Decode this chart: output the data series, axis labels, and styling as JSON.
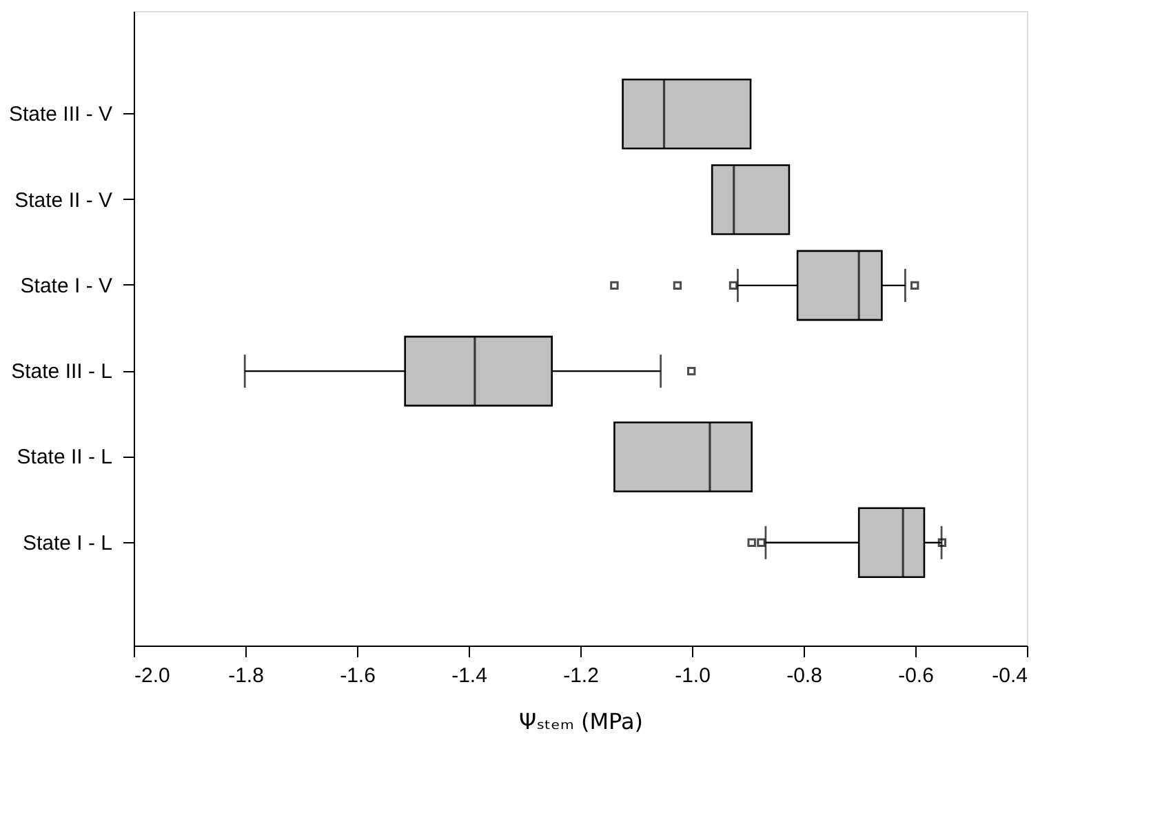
{
  "chart_data": {
    "type": "box",
    "orientation": "horizontal",
    "xlabel": "Ψₛₜₑₘ (MPa)",
    "categories": [
      "State III - V",
      "State II - V",
      "State I - V",
      "State III - L",
      "State II - L",
      "State I - L"
    ],
    "boxes": [
      {
        "low": -1.124,
        "q1": -1.124,
        "median": -1.05,
        "q3": -0.895,
        "high": -0.895
      },
      {
        "low": -0.964,
        "q1": -0.964,
        "median": -0.925,
        "q3": -0.826,
        "high": -0.826
      },
      {
        "low": -0.918,
        "q1": -0.811,
        "median": -0.701,
        "q3": -0.66,
        "high": -0.618,
        "outliers": [
          -1.139,
          -1.026,
          -0.926,
          -0.601
        ]
      },
      {
        "low": -1.801,
        "q1": -1.514,
        "median": -1.389,
        "q3": -1.251,
        "high": -1.056,
        "outliers": [
          -1.001
        ]
      },
      {
        "low": -1.139,
        "q1": -1.139,
        "median": -0.968,
        "q3": -0.893,
        "high": -0.893
      },
      {
        "low": -0.868,
        "q1": -0.701,
        "median": -0.622,
        "q3": -0.584,
        "high": -0.553,
        "outliers": [
          -0.893,
          -0.876,
          -0.552
        ]
      }
    ],
    "color": "#c0c0c0",
    "xlim": [
      -2.0,
      -0.4
    ],
    "xticks": [
      {
        "value": -2.0,
        "label": "-2.0"
      },
      {
        "value": -1.8,
        "label": "-1.8"
      },
      {
        "value": -1.6,
        "label": "-1.6"
      },
      {
        "value": -1.4,
        "label": "-1.4"
      },
      {
        "value": -1.2,
        "label": "-1.2"
      },
      {
        "value": -1.0,
        "label": "-1.0"
      },
      {
        "value": -0.8,
        "label": "-0.8"
      },
      {
        "value": -0.6,
        "label": "-0.6"
      },
      {
        "value": -0.4,
        "label": "-0.4"
      }
    ],
    "grid": false
  }
}
